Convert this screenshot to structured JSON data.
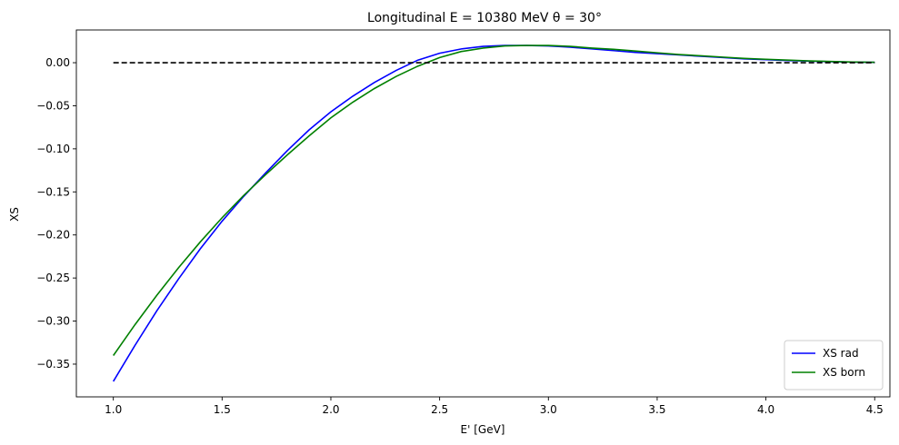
{
  "chart_data": {
    "type": "line",
    "title": "Longitudinal E = 10380 MeV θ = 30°",
    "xlabel": "E' [GeV]",
    "ylabel": "XS",
    "xlim": [
      0.83,
      4.57
    ],
    "ylim": [
      -0.388,
      0.038
    ],
    "xticks": [
      1.0,
      1.5,
      2.0,
      2.5,
      3.0,
      3.5,
      4.0,
      4.5
    ],
    "xtick_labels": [
      "1.0",
      "1.5",
      "2.0",
      "2.5",
      "3.0",
      "3.5",
      "4.0",
      "4.5"
    ],
    "yticks": [
      0.0,
      -0.05,
      -0.1,
      -0.15,
      -0.2,
      -0.25,
      -0.3,
      -0.35
    ],
    "ytick_labels": [
      "0.00",
      "−0.05",
      "−0.10",
      "−0.15",
      "−0.20",
      "−0.25",
      "−0.30",
      "−0.35"
    ],
    "grid": false,
    "legend_position": "lower-right",
    "series": [
      {
        "name": "XS rad",
        "color": "#0000ff",
        "style": "solid",
        "x": [
          1.0,
          1.1,
          1.2,
          1.3,
          1.4,
          1.5,
          1.6,
          1.7,
          1.8,
          1.9,
          2.0,
          2.1,
          2.2,
          2.3,
          2.4,
          2.5,
          2.6,
          2.7,
          2.8,
          2.9,
          3.0,
          3.1,
          3.2,
          3.3,
          3.4,
          3.5,
          3.6,
          3.7,
          3.8,
          3.9,
          4.0,
          4.1,
          4.2,
          4.3,
          4.4,
          4.5
        ],
        "values": [
          -0.37,
          -0.328,
          -0.288,
          -0.251,
          -0.216,
          -0.184,
          -0.155,
          -0.128,
          -0.102,
          -0.078,
          -0.057,
          -0.039,
          -0.023,
          -0.009,
          0.003,
          0.011,
          0.016,
          0.019,
          0.02,
          0.02,
          0.0195,
          0.018,
          0.016,
          0.014,
          0.012,
          0.0105,
          0.009,
          0.0075,
          0.006,
          0.0045,
          0.0035,
          0.0025,
          0.0018,
          0.0012,
          0.0007,
          0.0004
        ]
      },
      {
        "name": "XS born",
        "color": "#008000",
        "style": "solid",
        "x": [
          1.0,
          1.1,
          1.2,
          1.3,
          1.4,
          1.5,
          1.6,
          1.7,
          1.8,
          1.9,
          2.0,
          2.1,
          2.2,
          2.3,
          2.4,
          2.5,
          2.6,
          2.7,
          2.8,
          2.9,
          3.0,
          3.1,
          3.2,
          3.3,
          3.4,
          3.5,
          3.6,
          3.7,
          3.8,
          3.9,
          4.0,
          4.1,
          4.2,
          4.3,
          4.4,
          4.5
        ],
        "values": [
          -0.34,
          -0.304,
          -0.27,
          -0.238,
          -0.208,
          -0.18,
          -0.154,
          -0.13,
          -0.107,
          -0.085,
          -0.064,
          -0.046,
          -0.03,
          -0.016,
          -0.004,
          0.006,
          0.013,
          0.017,
          0.0195,
          0.02,
          0.02,
          0.019,
          0.017,
          0.0155,
          0.0135,
          0.0115,
          0.0095,
          0.008,
          0.0065,
          0.005,
          0.004,
          0.003,
          0.0021,
          0.0014,
          0.0008,
          0.0005
        ]
      },
      {
        "name": "",
        "color": "#000000",
        "style": "dashed",
        "x": [
          1.0,
          4.5
        ],
        "values": [
          0.0,
          0.0
        ]
      }
    ]
  }
}
